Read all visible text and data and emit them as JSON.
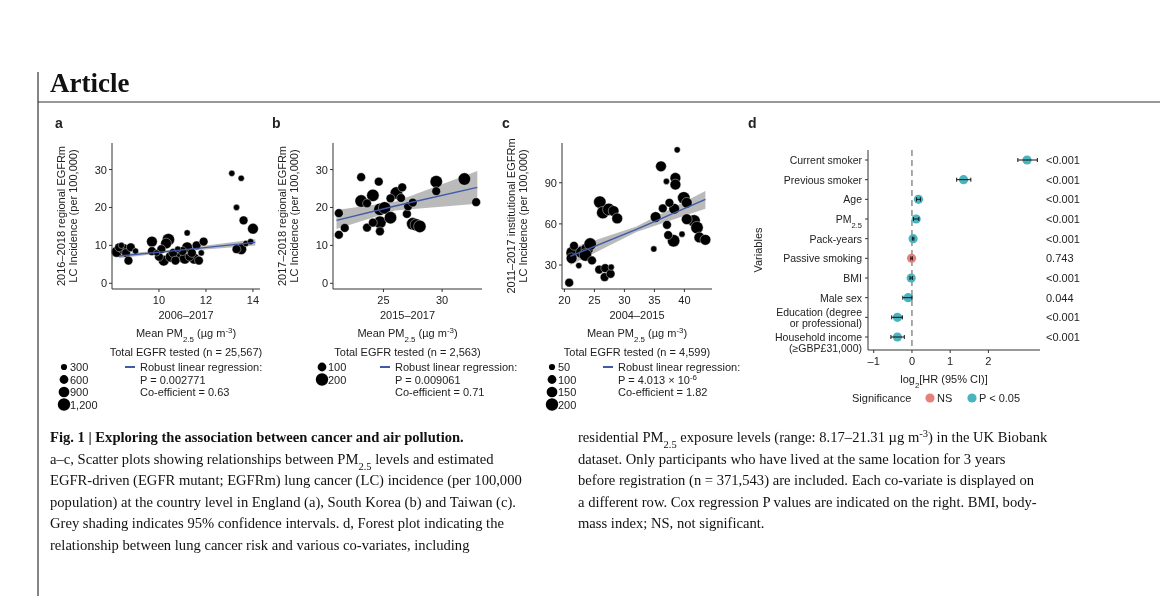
{
  "chart_data": [
    {
      "type": "other",
      "title": "Article"
    },
    {
      "type": "bubble",
      "title": "a",
      "xlabel": "2006–2017\nMean PM$_{2.5}$ (µg m$^{-3}$)",
      "ylabel": "2016–2018 regional EGFRm\nLC Incidence (per 100,000)",
      "legend_title": "Total EGFR tested (n = 25,567)",
      "legend": "bottom",
      "xlim": [
        8,
        14.3
      ],
      "ylim": [
        -1.5,
        37
      ],
      "xticks": [
        10,
        12,
        14
      ],
      "yticks": [
        0,
        10,
        20,
        30
      ],
      "size_legend": [
        300,
        600,
        900,
        {
          "value": 1200,
          "label": "1,200"
        }
      ],
      "annotations": [
        "P = 0.002771",
        "Co-efficient = 0.63"
      ],
      "series": [
        {
          "type": "bubble",
          "color": "#000000",
          "x": [
            8.3,
            8.2,
            8.4,
            8.5,
            8.6,
            8.7,
            8.8,
            9.0,
            9.7,
            9.7,
            9.9,
            10.0,
            10.1,
            10.2,
            10.3,
            10.4,
            10.5,
            10.6,
            10.7,
            10.8,
            10.9,
            11.0,
            11.1,
            11.2,
            11.3,
            11.4,
            11.5,
            11.6,
            11.7,
            11.8,
            11.9,
            11.2,
            13.1,
            13.5,
            13.3,
            13.6,
            14.0,
            13.3,
            13.5,
            13.7,
            13.9
          ],
          "values": [
            9.5,
            8.3,
            10,
            9,
            8,
            6,
            9.5,
            8.5,
            8.5,
            11,
            8,
            7,
            9,
            6,
            10.5,
            11.5,
            7,
            8,
            6,
            9,
            7,
            8.5,
            6.5,
            9.5,
            7,
            8,
            6.5,
            10,
            6,
            8,
            11,
            13.3,
            29,
            27.7,
            20,
            16.6,
            14.4,
            9,
            9,
            10.5,
            11
          ],
          "sizes": [
            600,
            900,
            300,
            900,
            600,
            600,
            600,
            300,
            600,
            900,
            300,
            600,
            600,
            900,
            900,
            1200,
            900,
            600,
            600,
            300,
            900,
            600,
            900,
            900,
            600,
            600,
            900,
            600,
            600,
            300,
            600,
            300,
            300,
            300,
            300,
            600,
            900,
            600,
            900,
            300,
            300
          ]
        },
        {
          "type": "line",
          "name": "Robust linear regression:",
          "color": "#3f5aa8",
          "x": [
            8.3,
            10.5,
            14.1
          ],
          "values": [
            7.2,
            8.5,
            10.8
          ],
          "lower": [
            6.6,
            8.2,
            10.0
          ],
          "upper": [
            7.8,
            8.8,
            11.6
          ]
        }
      ]
    },
    {
      "type": "bubble",
      "title": "b",
      "xlabel": "2015–2017\nMean PM$_{2.5}$ (µg m$^{-3}$)",
      "ylabel": "2017–2018 regional EGFRm\nLC Incidence (per 100,000)",
      "legend_title": "Total EGFR tested (n = 2,563)",
      "legend": "bottom",
      "xlim": [
        20.7,
        33.4
      ],
      "ylim": [
        -1.5,
        37
      ],
      "xticks": [
        25,
        30
      ],
      "yticks": [
        0,
        10,
        20,
        30
      ],
      "size_legend": [
        100,
        200
      ],
      "annotations": [
        "P = 0.009061",
        "Co-efficient = 0.71"
      ],
      "series": [
        {
          "type": "bubble",
          "color": "#000000",
          "x": [
            21.2,
            21.2,
            21.7,
            23.1,
            23.1,
            23.6,
            23.6,
            24.1,
            24.6,
            24.7,
            24.7,
            24.7,
            25.1,
            24.1,
            25.6,
            25.6,
            26.1,
            26.5,
            26.6,
            27.0,
            27.1,
            27.5,
            27.5,
            27.8,
            28.1,
            29.5,
            29.5,
            31.9,
            32.9
          ],
          "values": [
            18.5,
            12.8,
            14.6,
            28,
            21.7,
            21.1,
            14.7,
            23.2,
            26.8,
            19.5,
            16.1,
            13.7,
            19.9,
            16,
            17.3,
            22.4,
            23.8,
            22.5,
            25.3,
            18.3,
            20.3,
            21.3,
            15.7,
            15.4,
            15,
            24.3,
            26.8,
            27.5,
            21.4
          ],
          "sizes": [
            100,
            100,
            100,
            100,
            200,
            100,
            100,
            200,
            100,
            200,
            200,
            100,
            200,
            100,
            200,
            100,
            200,
            100,
            100,
            100,
            100,
            100,
            200,
            200,
            200,
            100,
            200,
            200,
            100
          ]
        },
        {
          "type": "line",
          "name": "Robust linear regression:",
          "color": "#3f5aa8",
          "x": [
            21,
            26,
            33
          ],
          "values": [
            16.6,
            20.4,
            25.3
          ],
          "lower": [
            14.3,
            19.2,
            21
          ],
          "upper": [
            19.3,
            21.5,
            29.6
          ]
        }
      ]
    },
    {
      "type": "bubble",
      "title": "c",
      "xlabel": "2004–2015\nMean PM$_{2.5}$ (µg m$^{-3}$)",
      "ylabel": "2011–2017 institutional EGFRm\nLC Incidence (per 100,000)",
      "legend_title": "Total EGFR tested (n = 4,599)",
      "legend": "bottom",
      "xlim": [
        19.6,
        44.6
      ],
      "ylim": [
        12.5,
        119
      ],
      "xticks": [
        20,
        25,
        30,
        35,
        40
      ],
      "yticks": [
        30,
        60,
        90
      ],
      "size_legend": [
        50,
        100,
        150,
        200
      ],
      "annotations": [
        "P = 4.013 × 10$^{-6}$",
        "Co-efficient = 1.82"
      ],
      "series": [
        {
          "type": "bubble",
          "color": "#000000",
          "x": [
            20.8,
            21.2,
            21.6,
            22.4,
            21.3,
            22.9,
            23.8,
            24.3,
            23.5,
            24.6,
            25.9,
            26.4,
            27.4,
            28.2,
            28.8,
            25.8,
            26.7,
            26.8,
            27.7,
            27.8,
            34.9,
            35.2,
            36.1,
            36.4,
            37,
            37.1,
            37.3,
            37.5,
            38.2,
            38.3,
            38.5,
            38.5,
            38.8,
            39.6,
            39.9,
            40.4,
            40.4,
            41.6,
            42.1,
            42.5,
            43.5
          ],
          "values": [
            17.1,
            34.9,
            44,
            29.6,
            39,
            39.3,
            41.7,
            45.3,
            37.3,
            33.3,
            75.9,
            68.2,
            70.6,
            69.4,
            64,
            26.7,
            21.2,
            27.7,
            23.6,
            28.4,
            41.7,
            65,
            102,
            71.3,
            91,
            59.3,
            51.8,
            75.4,
            47.7,
            71,
            93.5,
            88.7,
            114,
            52.5,
            79,
            75.4,
            63.4,
            62.2,
            57.3,
            50.1,
            48.4
          ],
          "sizes": [
            100,
            150,
            100,
            50,
            200,
            200,
            200,
            200,
            200,
            100,
            200,
            200,
            200,
            150,
            150,
            100,
            100,
            100,
            100,
            50,
            50,
            150,
            150,
            100,
            50,
            100,
            100,
            100,
            200,
            150,
            150,
            150,
            50,
            50,
            200,
            150,
            150,
            200,
            200,
            150,
            150
          ]
        },
        {
          "type": "line",
          "name": "Robust linear regression:",
          "color": "#3f5aa8",
          "x": [
            21,
            32,
            43.5
          ],
          "values": [
            36.4,
            56,
            77.8
          ],
          "lower": [
            30,
            54,
            71
          ],
          "upper": [
            42,
            58,
            84
          ]
        }
      ]
    },
    {
      "type": "scatter",
      "orientation": "horizontal",
      "title": "d",
      "xlabel": "log$_{2}$[HR (95% CI)]",
      "ylabel": "Variables",
      "legend_title": "Significance",
      "legend": "bottom",
      "categories": [
        "Current smoker",
        "Previous smoker",
        "Age",
        "PM$_{2.5}$",
        "Pack-years",
        "Passive smoking",
        "BMI",
        "Male sex",
        "Education (degree or professional)",
        "Household income (≥GBP£31,000)"
      ],
      "y2_categories": [
        "<0.001",
        "<0.001",
        "<0.001",
        "<0.001",
        "<0.001",
        "0.743",
        "<0.001",
        "0.044",
        "<0.001",
        "<0.001"
      ],
      "xlim": [
        -1.15,
        3.35
      ],
      "xticks": [
        {
          "value": -1,
          "label": "–1"
        },
        0,
        1,
        2
      ],
      "ref_lines": [
        {
          "axis": "x",
          "value": 0,
          "line_style": "dashed",
          "color": "#555555"
        }
      ],
      "series": [
        {
          "name": "NS",
          "color": "#e8807a",
          "values": [
            null,
            null,
            null,
            null,
            null,
            -0.01,
            null,
            null,
            null,
            null
          ],
          "errors": [
            null,
            null,
            null,
            null,
            null,
            [
              -0.03,
              0.01
            ],
            null,
            null,
            null,
            null
          ]
        },
        {
          "name": "P < 0.05",
          "color": "#4bb3bd",
          "values": [
            3.01,
            1.35,
            0.17,
            0.11,
            0.03,
            null,
            -0.02,
            -0.1,
            -0.38,
            -0.38
          ],
          "errors": [
            [
              2.77,
              3.28
            ],
            [
              1.17,
              1.54
            ],
            [
              0.12,
              0.22
            ],
            [
              0.04,
              0.18
            ],
            [
              0.01,
              0.05
            ],
            null,
            [
              -0.05,
              0.01
            ],
            [
              -0.24,
              0.0
            ],
            [
              -0.53,
              -0.25
            ],
            [
              -0.55,
              -0.2
            ]
          ]
        }
      ]
    },
    {
      "type": "other",
      "title": "Fig. 1 | Exploring the association between cancer and air pollution.",
      "annotations": [
        "a–c, Scatter plots showing relationships between PM$_{2.5}$ levels and estimated",
        "EGFR-driven (EGFR mutant; EGFRm) lung cancer (LC) incidence (per 100,000",
        "population) at the country level in England (a), South Korea (b) and Taiwan (c).",
        "Grey shading indicates 95% confidence intervals. d, Forest plot indicating the",
        "relationship between lung cancer risk and various co-variates, including",
        "residential PM$_{2.5}$ exposure levels (range: 8.17–21.31 µg m$^{-3}$) in the UK Biobank",
        "dataset. Only participants who have lived at the same location for 3 years",
        "before registration (n = 371,543) are included. Each co-variate is displayed on",
        "a different row. Cox regression P values are indicated on the right. BMI, body-",
        "mass index; NS, not significant."
      ]
    }
  ]
}
